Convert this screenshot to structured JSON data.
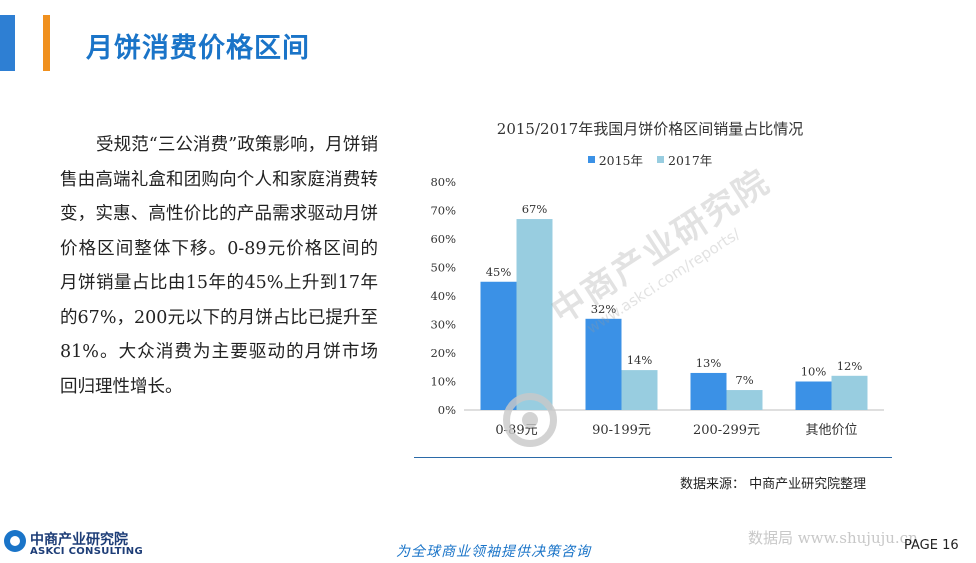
{
  "header": {
    "title": "月饼消费价格区间"
  },
  "body": {
    "paragraph": "受规范“三公消费”政策影响，月饼销售由高端礼盒和团购向个人和家庭消费转变，实惠、高性价比的产品需求驱动月饼价格区间整体下移。0-89元价格区间的月饼销量占比由15年的45%上升到17年的67%，200元以下的月饼占比已提升至81%。大众消费为主要驱动的月饼市场回归理性增长。"
  },
  "chart_data": {
    "type": "bar",
    "title": "2015/2017年我国月饼价格区间销量占比情况",
    "categories": [
      "0-89元",
      "90-199元",
      "200-299元",
      "其他价位"
    ],
    "series": [
      {
        "name": "2015年",
        "values": [
          45,
          32,
          13,
          10
        ],
        "labels": [
          "45%",
          "32%",
          "13%",
          "10%"
        ],
        "color": "#3b91e6"
      },
      {
        "name": "2017年",
        "values": [
          67,
          14,
          7,
          12
        ],
        "labels": [
          "67%",
          "14%",
          "7%",
          "12%"
        ],
        "color": "#98cde0"
      }
    ],
    "ylim": [
      0,
      80
    ],
    "yticks": [
      "0%",
      "10%",
      "20%",
      "30%",
      "40%",
      "50%",
      "60%",
      "70%",
      "80%"
    ],
    "grid": false,
    "legend": "top-center"
  },
  "source": {
    "text": "数据来源：  中商产业研究院整理"
  },
  "watermark": {
    "line1": "中商产业研究院",
    "line2": "www.askci.com/reports/"
  },
  "footer": {
    "logo_cn": "中商产业研究院",
    "logo_en": "ASKCI CONSULTING",
    "slogan": "为全球商业领袖提供决策咨询",
    "site_watermark": "数据局  www.shujuju.cn",
    "page": "PAGE  16"
  }
}
